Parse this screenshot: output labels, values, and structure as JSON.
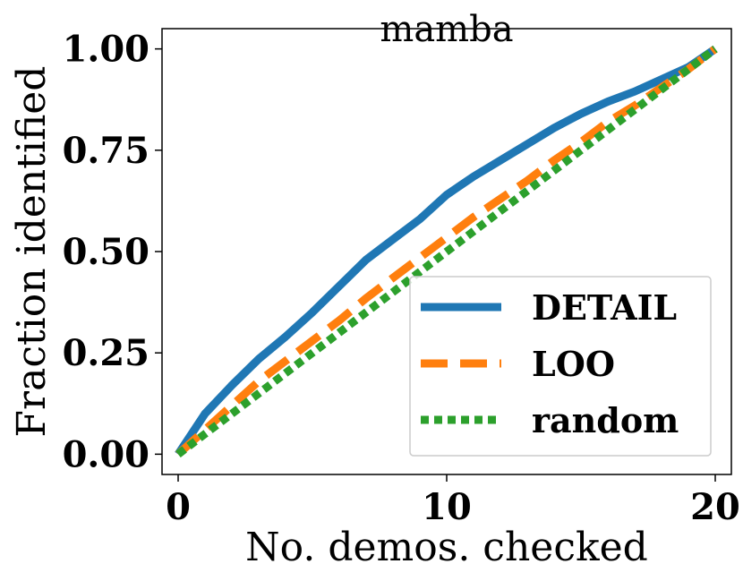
{
  "chart_data": {
    "type": "line",
    "title": "mamba",
    "xlabel": "No. demos. checked",
    "ylabel": "Fraction identified",
    "xlim": [
      -0.6,
      20.6
    ],
    "ylim": [
      -0.05,
      1.05
    ],
    "xticks": [
      0,
      10,
      20
    ],
    "xtick_labels": [
      "0",
      "10",
      "20"
    ],
    "yticks": [
      0.0,
      0.25,
      0.5,
      0.75,
      1.0
    ],
    "ytick_labels": [
      "0.00",
      "0.25",
      "0.50",
      "0.75",
      "1.00"
    ],
    "legend_position": "lower right",
    "grid": false,
    "series": [
      {
        "name": "DETAIL",
        "color": "#1f77b4",
        "style": "solid",
        "x": [
          0,
          1,
          2,
          3,
          4,
          5,
          6,
          7,
          8,
          9,
          10,
          11,
          12,
          13,
          14,
          15,
          16,
          17,
          18,
          19,
          20
        ],
        "y": [
          0.0,
          0.1,
          0.17,
          0.235,
          0.29,
          0.35,
          0.415,
          0.48,
          0.53,
          0.58,
          0.64,
          0.685,
          0.725,
          0.765,
          0.805,
          0.84,
          0.87,
          0.895,
          0.925,
          0.955,
          1.0
        ]
      },
      {
        "name": "LOO",
        "color": "#ff7f0e",
        "style": "dashed",
        "x": [
          0,
          1,
          2,
          3,
          4,
          5,
          6,
          7,
          8,
          9,
          10,
          11,
          12,
          13,
          14,
          15,
          16,
          17,
          18,
          19,
          20
        ],
        "y": [
          0.0,
          0.06,
          0.12,
          0.18,
          0.23,
          0.28,
          0.33,
          0.385,
          0.435,
          0.485,
          0.535,
          0.585,
          0.63,
          0.675,
          0.725,
          0.77,
          0.82,
          0.86,
          0.905,
          0.95,
          1.0
        ]
      },
      {
        "name": "random",
        "color": "#2ca02c",
        "style": "dotted",
        "x": [
          0,
          1,
          2,
          3,
          4,
          5,
          6,
          7,
          8,
          9,
          10,
          11,
          12,
          13,
          14,
          15,
          16,
          17,
          18,
          19,
          20
        ],
        "y": [
          0.0,
          0.05,
          0.1,
          0.15,
          0.2,
          0.25,
          0.3,
          0.35,
          0.4,
          0.45,
          0.5,
          0.55,
          0.6,
          0.65,
          0.7,
          0.75,
          0.8,
          0.85,
          0.9,
          0.95,
          1.0
        ]
      }
    ]
  }
}
